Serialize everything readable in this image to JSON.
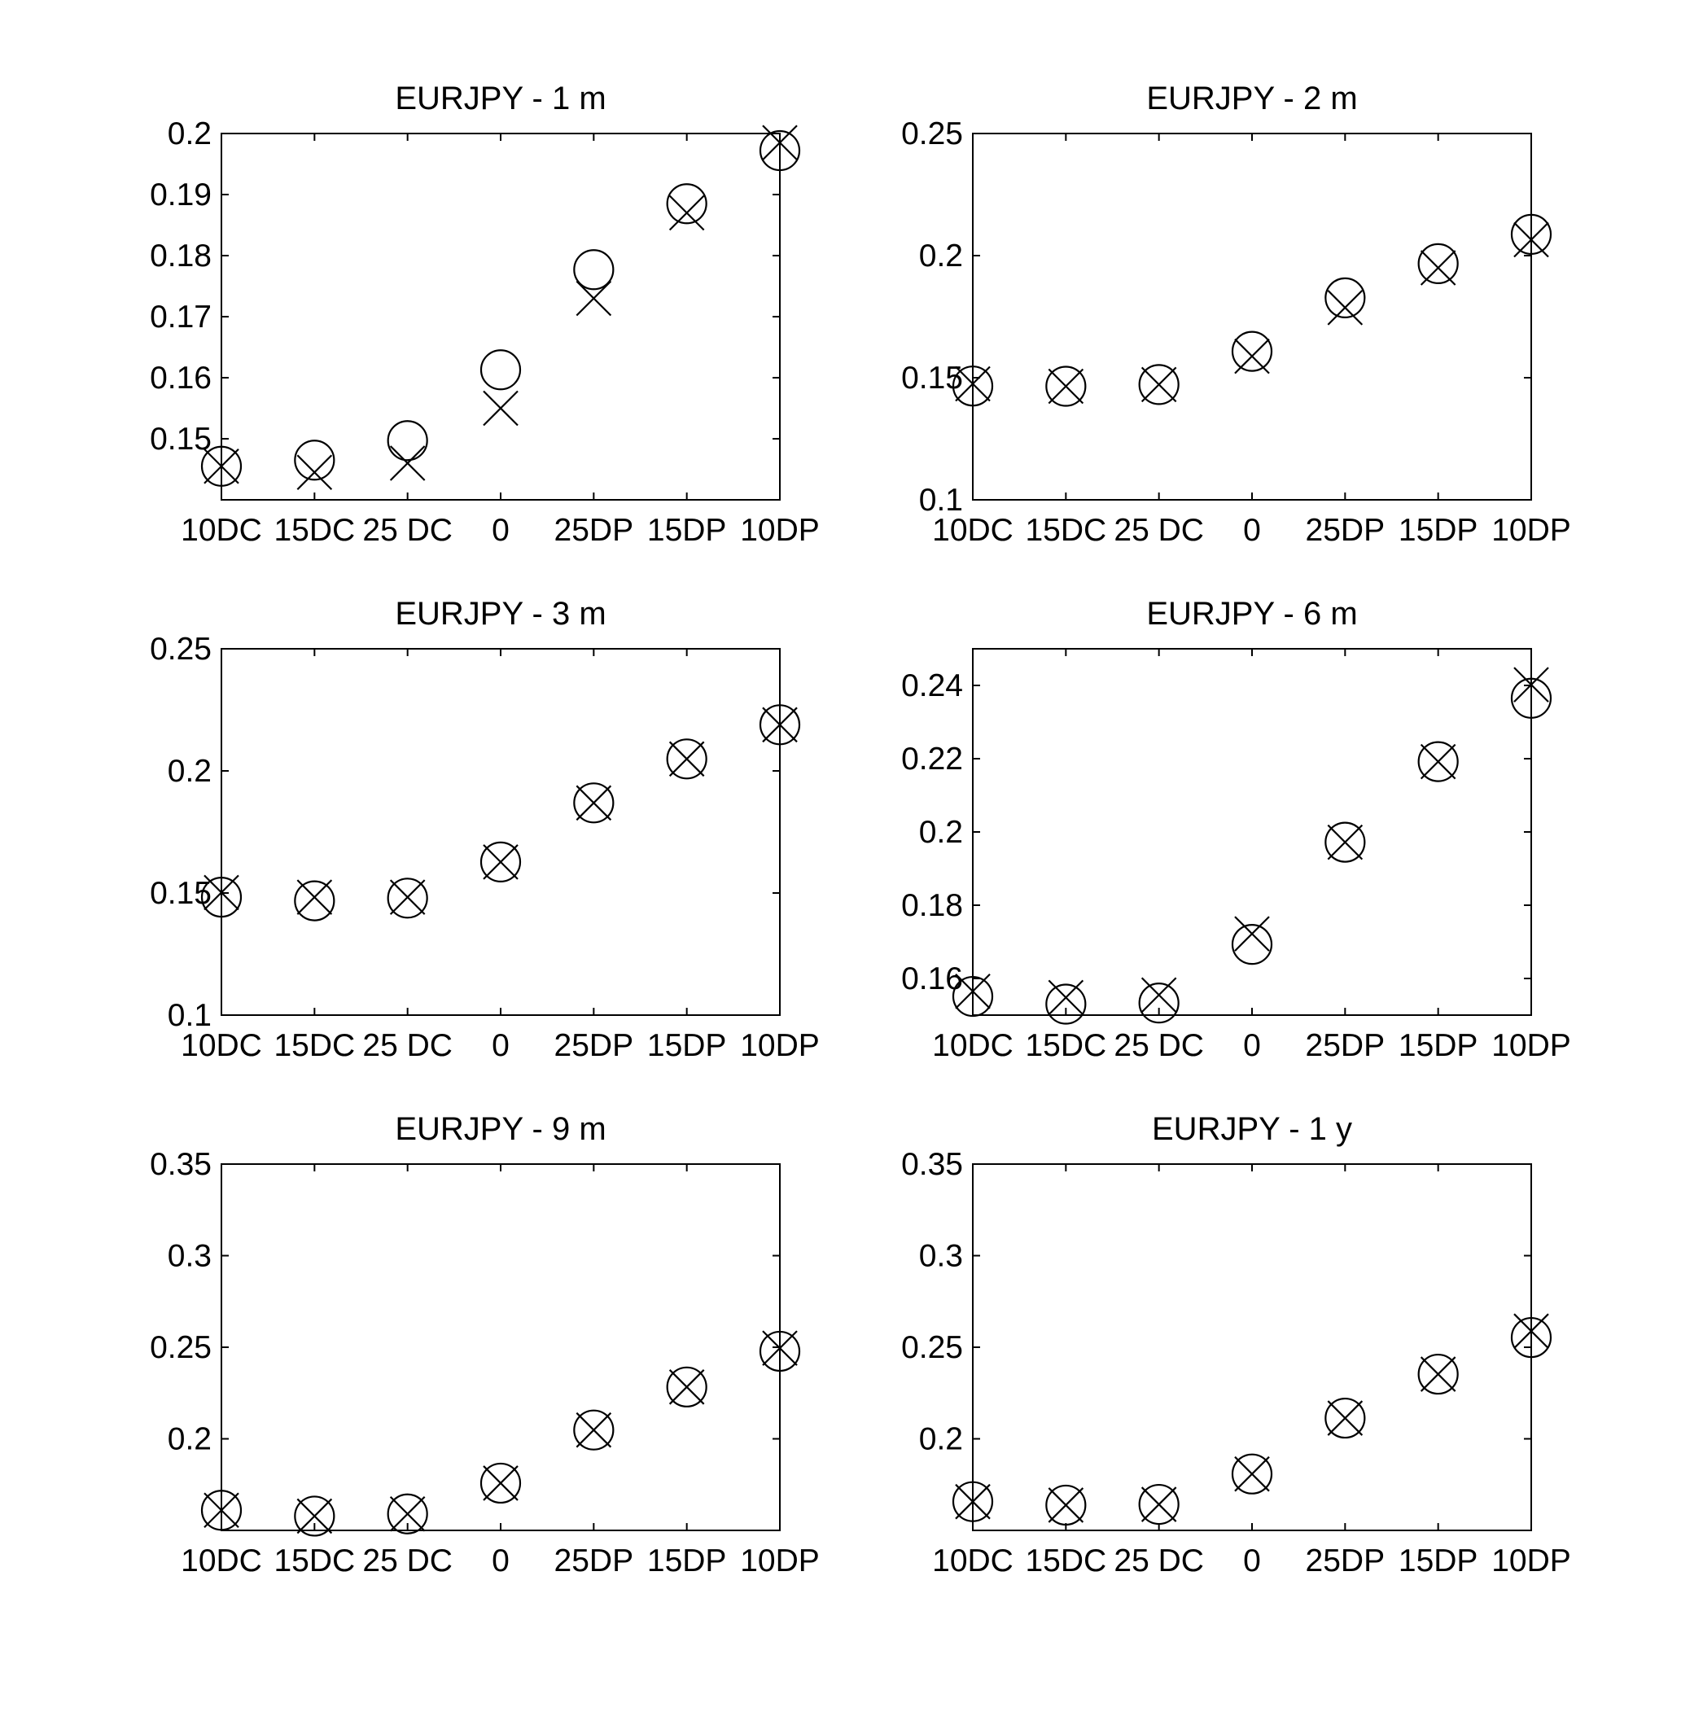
{
  "chart_data": [
    {
      "type": "scatter",
      "title": "EURJPY - 1 m",
      "categories": [
        "10DC",
        "15DC",
        "25 DC",
        "0",
        "25DP",
        "15DP",
        "10DP"
      ],
      "ylim": [
        0.14,
        0.2
      ],
      "yticks": [
        "0.15",
        "0.16",
        "0.17",
        "0.18",
        "0.19",
        "0.2"
      ],
      "grid": false,
      "series": [
        {
          "marker": "circle",
          "values": [
            0.1455,
            0.1465,
            0.1497,
            0.1613,
            0.1777,
            0.1885,
            0.1972
          ]
        },
        {
          "marker": "x",
          "values": [
            0.1455,
            0.1445,
            0.146,
            0.155,
            0.173,
            0.187,
            0.1985
          ]
        }
      ]
    },
    {
      "type": "scatter",
      "title": "EURJPY - 2 m",
      "categories": [
        "10DC",
        "15DC",
        "25 DC",
        "0",
        "25DP",
        "15DP",
        "10DP"
      ],
      "ylim": [
        0.1,
        0.25
      ],
      "yticks": [
        "0.1",
        "0.15",
        "0.2",
        "0.25"
      ],
      "grid": false,
      "series": [
        {
          "marker": "circle",
          "values": [
            0.1466,
            0.1465,
            0.1472,
            0.1608,
            0.1827,
            0.1967,
            0.2087
          ]
        },
        {
          "marker": "x",
          "values": [
            0.1475,
            0.1465,
            0.1472,
            0.1588,
            0.1787,
            0.195,
            0.2065
          ]
        }
      ]
    },
    {
      "type": "scatter",
      "title": "EURJPY - 3 m",
      "categories": [
        "10DC",
        "15DC",
        "25 DC",
        "0",
        "25DP",
        "15DP",
        "10DP"
      ],
      "ylim": [
        0.1,
        0.25
      ],
      "yticks": [
        "0.1",
        "0.15",
        "0.2",
        "0.25"
      ],
      "grid": false,
      "series": [
        {
          "marker": "circle",
          "values": [
            0.1483,
            0.1468,
            0.1479,
            0.1627,
            0.1869,
            0.2049,
            0.2189
          ]
        },
        {
          "marker": "x",
          "values": [
            0.1502,
            0.1483,
            0.1483,
            0.1627,
            0.1869,
            0.2049,
            0.2189
          ]
        }
      ]
    },
    {
      "type": "scatter",
      "title": "EURJPY - 6 m",
      "categories": [
        "10DC",
        "15DC",
        "25 DC",
        "0",
        "25DP",
        "15DP",
        "10DP"
      ],
      "ylim": [
        0.15,
        0.25
      ],
      "yticks": [
        "0.16",
        "0.18",
        "0.2",
        "0.22",
        "0.24"
      ],
      "grid": false,
      "series": [
        {
          "marker": "circle",
          "values": [
            0.1551,
            0.153,
            0.1533,
            0.1693,
            0.1972,
            0.2192,
            0.2365
          ]
        },
        {
          "marker": "x",
          "values": [
            0.1565,
            0.1548,
            0.1555,
            0.1722,
            0.1972,
            0.2192,
            0.2402
          ]
        }
      ]
    },
    {
      "type": "scatter",
      "title": "EURJPY - 9 m",
      "categories": [
        "10DC",
        "15DC",
        "25 DC",
        "0",
        "25DP",
        "15DP",
        "10DP"
      ],
      "ylim": [
        0.15,
        0.35
      ],
      "yticks": [
        "0.2",
        "0.25",
        "0.3",
        "0.35"
      ],
      "grid": false,
      "series": [
        {
          "marker": "circle",
          "values": [
            0.161,
            0.1578,
            0.159,
            0.1758,
            0.2048,
            0.2283,
            0.2478
          ]
        },
        {
          "marker": "x",
          "values": [
            0.161,
            0.1578,
            0.159,
            0.1758,
            0.2048,
            0.2283,
            0.2495
          ]
        }
      ]
    },
    {
      "type": "scatter",
      "title": "EURJPY - 1 y",
      "categories": [
        "10DC",
        "15DC",
        "25 DC",
        "0",
        "25DP",
        "15DP",
        "10DP"
      ],
      "ylim": [
        0.15,
        0.35
      ],
      "yticks": [
        "0.2",
        "0.25",
        "0.3",
        "0.35"
      ],
      "grid": false,
      "series": [
        {
          "marker": "circle",
          "values": [
            0.1657,
            0.1638,
            0.1642,
            0.1808,
            0.2113,
            0.2353,
            0.2553
          ]
        },
        {
          "marker": "x",
          "values": [
            0.1657,
            0.1638,
            0.1642,
            0.1808,
            0.2113,
            0.2353,
            0.2588
          ]
        }
      ]
    }
  ]
}
